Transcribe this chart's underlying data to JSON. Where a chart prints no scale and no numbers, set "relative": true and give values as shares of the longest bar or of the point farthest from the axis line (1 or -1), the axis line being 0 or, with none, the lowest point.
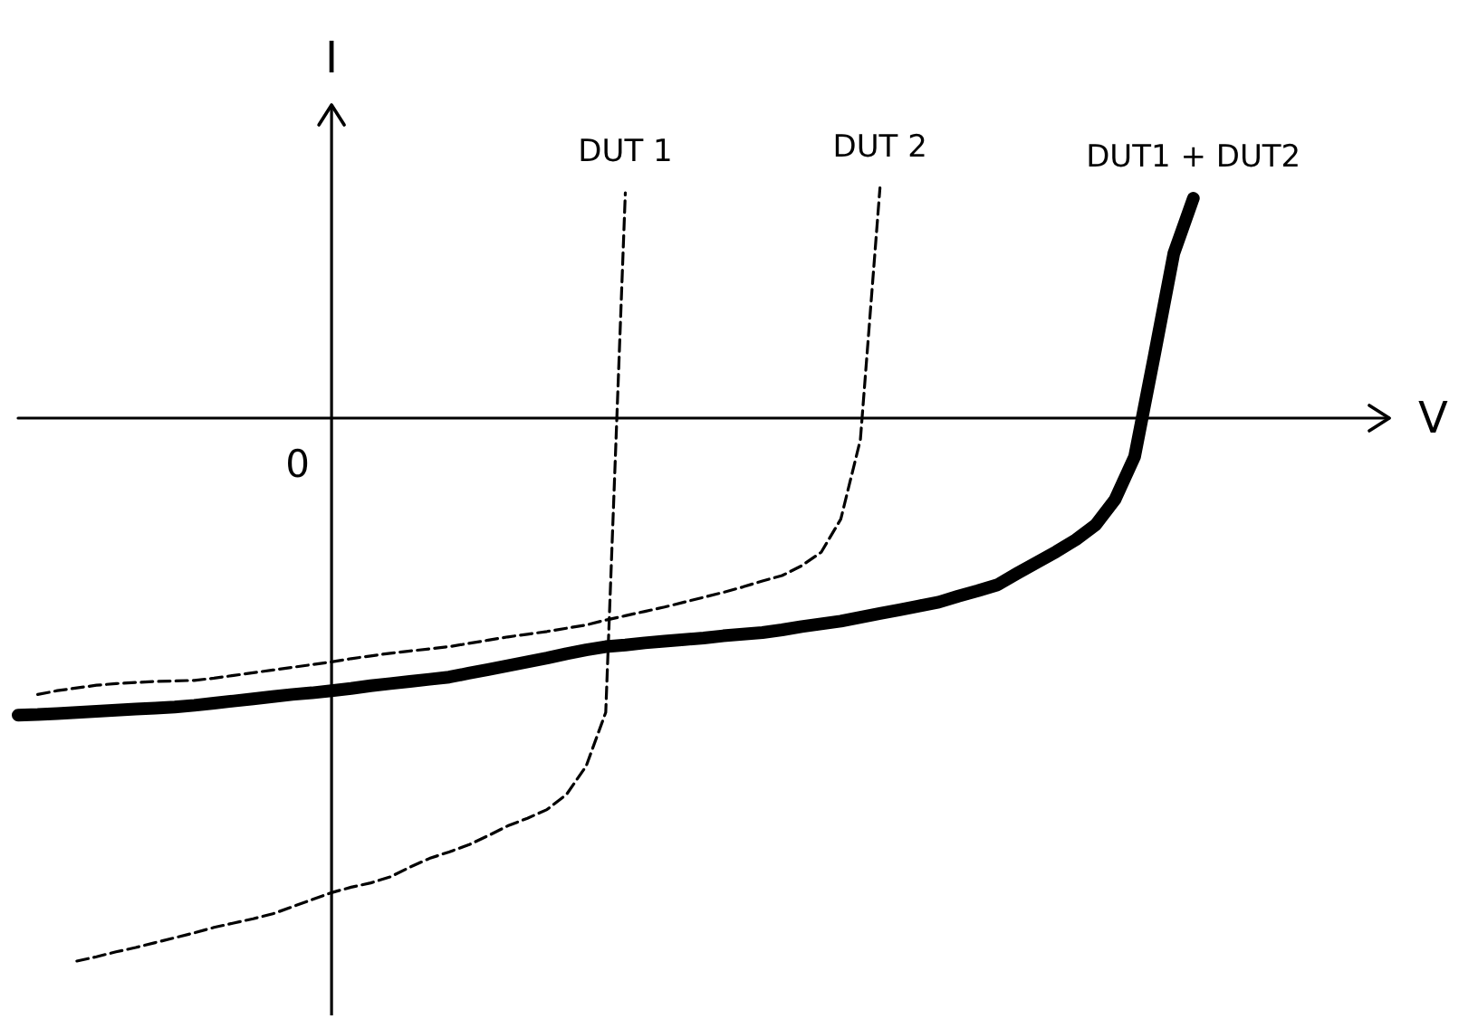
{
  "chart_data": {
    "type": "line",
    "relative": true,
    "xlabel": "V",
    "ylabel": "I",
    "marker": "none",
    "annotations": [
      "0"
    ],
    "categories": [
      null,
      null,
      null,
      null,
      null,
      null,
      null,
      null,
      null,
      null,
      null,
      null,
      null,
      null,
      null,
      null,
      null,
      null,
      null,
      null,
      null,
      null,
      null,
      null,
      null,
      null,
      null,
      null,
      null,
      null,
      null,
      null,
      null,
      null,
      null,
      null,
      null,
      null,
      null,
      null,
      null,
      null,
      null,
      null,
      null,
      null,
      null,
      null,
      null,
      null,
      null,
      null,
      null,
      null,
      null,
      null,
      null,
      null,
      null,
      null,
      null,
      null,
      null,
      null,
      null,
      null,
      null,
      null,
      null,
      null,
      null
    ],
    "series": [
      {
        "name": "DUT 1",
        "color": "#000000",
        "line_style": "dashed",
        "values": [
          null,
          null,
          null,
          -1.0,
          -0.992,
          -0.983,
          -0.975,
          -0.966,
          -0.957,
          -0.948,
          -0.938,
          -0.93,
          -0.922,
          -0.913,
          -0.9,
          -0.887,
          -0.874,
          -0.864,
          -0.856,
          -0.845,
          -0.827,
          -0.811,
          -0.799,
          -0.786,
          -0.769,
          -0.751,
          -0.737,
          -0.721,
          -0.693,
          -0.641,
          -0.542,
          0.415,
          null,
          null,
          null,
          null,
          null,
          null,
          null,
          null,
          null,
          null,
          null,
          null,
          null,
          null,
          null,
          null,
          null,
          null,
          null,
          null,
          null,
          null,
          null,
          null,
          null,
          null,
          null,
          null,
          null,
          null,
          null,
          null,
          null,
          null,
          null,
          null,
          null,
          null,
          null
        ]
      },
      {
        "name": "DUT 2",
        "color": "#000000",
        "line_style": "dashed",
        "values": [
          null,
          -0.509,
          -0.502,
          -0.497,
          -0.492,
          -0.489,
          -0.487,
          -0.485,
          -0.484,
          -0.483,
          -0.479,
          -0.474,
          -0.469,
          -0.464,
          -0.459,
          -0.454,
          -0.449,
          -0.443,
          -0.438,
          -0.433,
          -0.429,
          -0.425,
          -0.421,
          -0.415,
          -0.409,
          -0.403,
          -0.398,
          -0.393,
          -0.387,
          -0.381,
          -0.372,
          -0.364,
          -0.356,
          -0.348,
          -0.339,
          -0.33,
          -0.321,
          -0.311,
          -0.3,
          -0.29,
          -0.272,
          -0.247,
          -0.186,
          -0.04,
          0.424,
          null,
          null,
          null,
          null,
          null,
          null,
          null,
          null,
          null,
          null,
          null,
          null,
          null,
          null,
          null,
          null,
          null,
          null,
          null,
          null,
          null,
          null,
          null,
          null,
          null,
          null
        ]
      },
      {
        "name": "DUT1 + DUT2",
        "color": "#000000",
        "line_style": "solid",
        "values": [
          -0.547,
          -0.546,
          -0.544,
          -0.542,
          -0.54,
          -0.538,
          -0.536,
          -0.534,
          -0.532,
          -0.529,
          -0.525,
          -0.521,
          -0.517,
          -0.513,
          -0.509,
          -0.506,
          -0.502,
          -0.498,
          -0.493,
          -0.489,
          -0.485,
          -0.481,
          -0.477,
          -0.47,
          -0.463,
          -0.456,
          -0.449,
          -0.442,
          -0.434,
          -0.427,
          -0.421,
          -0.418,
          -0.414,
          -0.411,
          -0.408,
          -0.405,
          -0.401,
          -0.398,
          -0.395,
          -0.39,
          -0.384,
          -0.379,
          -0.374,
          -0.367,
          -0.36,
          -0.353,
          -0.346,
          -0.339,
          -0.328,
          -0.318,
          -0.307,
          -0.286,
          -0.266,
          -0.246,
          -0.224,
          -0.197,
          -0.15,
          -0.071,
          0.114,
          0.303,
          0.405,
          null,
          null,
          null,
          null,
          null,
          null,
          null,
          null,
          null,
          null
        ]
      }
    ]
  }
}
